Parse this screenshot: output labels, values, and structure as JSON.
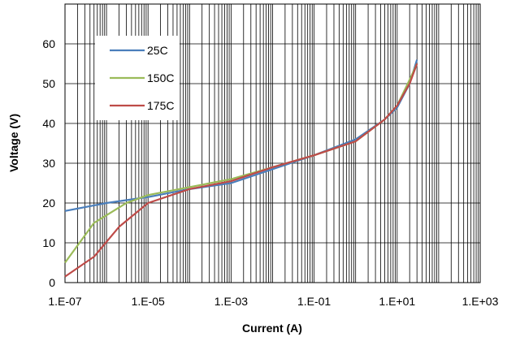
{
  "chart_data": {
    "type": "line",
    "title": "",
    "xlabel": "Current (A)",
    "ylabel": "Voltage (V)",
    "x_scale": "log",
    "xlim": [
      1e-07,
      1000
    ],
    "ylim": [
      0,
      70
    ],
    "x_ticks": [
      {
        "value": 1e-07,
        "label": "1.E-07"
      },
      {
        "value": 1e-05,
        "label": "1.E-05"
      },
      {
        "value": 0.001,
        "label": "1.E-03"
      },
      {
        "value": 0.1,
        "label": "1.E-01"
      },
      {
        "value": 10,
        "label": "1.E+01"
      },
      {
        "value": 1000,
        "label": "1.E+03"
      }
    ],
    "y_ticks": [
      {
        "value": 0,
        "label": "0"
      },
      {
        "value": 10,
        "label": "10"
      },
      {
        "value": 20,
        "label": "20"
      },
      {
        "value": 30,
        "label": "30"
      },
      {
        "value": 40,
        "label": "40"
      },
      {
        "value": 50,
        "label": "50"
      },
      {
        "value": 60,
        "label": "60"
      }
    ],
    "grid": {
      "major_horizontal": true,
      "minor_vertical": true
    },
    "legend_position": "top-left",
    "series": [
      {
        "name": "25C",
        "color": "#4a7ebb",
        "points": [
          [
            1e-07,
            18
          ],
          [
            1e-06,
            20
          ],
          [
            1e-05,
            21.5
          ],
          [
            0.0001,
            23.5
          ],
          [
            0.001,
            25
          ],
          [
            0.01,
            28.5
          ],
          [
            0.1,
            32
          ],
          [
            1,
            36
          ],
          [
            5,
            41
          ],
          [
            10,
            44
          ],
          [
            20,
            50
          ],
          [
            30,
            56
          ]
        ]
      },
      {
        "name": "150C",
        "color": "#9bbb59",
        "points": [
          [
            1e-07,
            5
          ],
          [
            5e-07,
            15
          ],
          [
            3e-06,
            20
          ],
          [
            1e-05,
            22
          ],
          [
            0.0001,
            24
          ],
          [
            0.001,
            26
          ],
          [
            0.01,
            29
          ],
          [
            0.1,
            32
          ],
          [
            1,
            35.5
          ],
          [
            5,
            41
          ],
          [
            10,
            44.5
          ],
          [
            20,
            51
          ],
          [
            30,
            55
          ]
        ]
      },
      {
        "name": "175C",
        "color": "#be4b48",
        "points": [
          [
            1e-07,
            1.5
          ],
          [
            5e-07,
            6.5
          ],
          [
            2e-06,
            14
          ],
          [
            1e-05,
            20
          ],
          [
            0.0001,
            23.5
          ],
          [
            0.001,
            25.5
          ],
          [
            0.01,
            29
          ],
          [
            0.1,
            32
          ],
          [
            1,
            35.5
          ],
          [
            5,
            41
          ],
          [
            10,
            44.5
          ],
          [
            20,
            50
          ],
          [
            30,
            55
          ]
        ]
      }
    ]
  }
}
